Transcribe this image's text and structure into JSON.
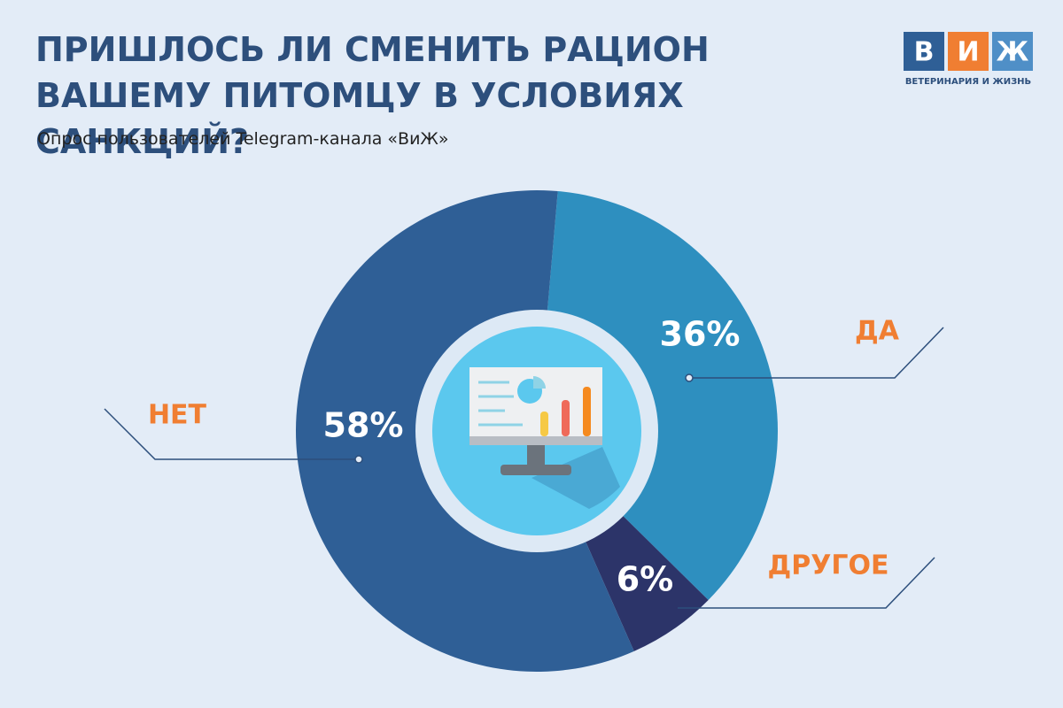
{
  "chart_data": {
    "type": "donut",
    "title": "ПРИШЛОСЬ ЛИ СМЕНИТЬ РАЦИОН ВАШЕМУ ПИТОМЦУ В УСЛОВИЯХ САНКЦИЙ?",
    "subtitle": "Опрос пользователей Telegram-канала «ВиЖ»",
    "categories": [
      "ДА",
      "ДРУГОЕ",
      "НЕТ"
    ],
    "values": [
      36,
      6,
      58
    ],
    "value_labels": [
      "36%",
      "6%",
      "58%"
    ],
    "colors": [
      "#2e8fbf",
      "#2c3469",
      "#2f5f96"
    ]
  },
  "logo": {
    "letters": [
      "В",
      "И",
      "Ж"
    ],
    "caption": "ВЕТЕРИНАРИЯ И ЖИЗНЬ"
  }
}
